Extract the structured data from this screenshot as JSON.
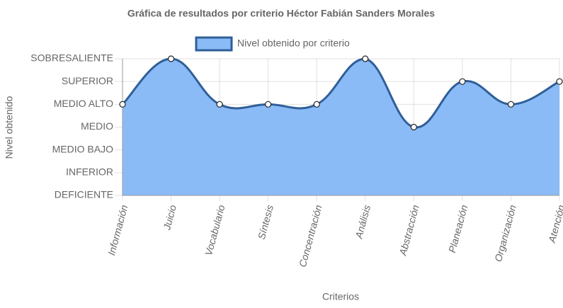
{
  "chart_data": {
    "type": "line",
    "title": "Gráfica de resultados por criterio Héctor Fabián Sanders Morales",
    "x_label": "Criterios",
    "y_label": "Nivel obtenido",
    "categories": [
      "Información",
      "Juicio",
      "Vocabulario",
      "Síntesis",
      "Concentración",
      "Análisis",
      "Abstracción",
      "Planeación",
      "Organización",
      "Atención"
    ],
    "series": [
      {
        "name": "Nivel obtenido por criterio",
        "color": "#2f5f98",
        "fill": "#8abbf7",
        "values": [
          4,
          6,
          4,
          4,
          4,
          6,
          3,
          5,
          4,
          5
        ]
      }
    ],
    "ylim": [
      0,
      6
    ],
    "yticks": [
      {
        "value": 0,
        "label": "DEFICIENTE"
      },
      {
        "value": 1,
        "label": "INFERIOR"
      },
      {
        "value": 2,
        "label": "MEDIO BAJO"
      },
      {
        "value": 3,
        "label": "MEDIO"
      },
      {
        "value": 4,
        "label": "MEDIO ALTO"
      },
      {
        "value": 5,
        "label": "SUPERIOR"
      },
      {
        "value": 6,
        "label": "SOBRESALIENTE"
      }
    ],
    "grid": true,
    "legend": "top"
  }
}
